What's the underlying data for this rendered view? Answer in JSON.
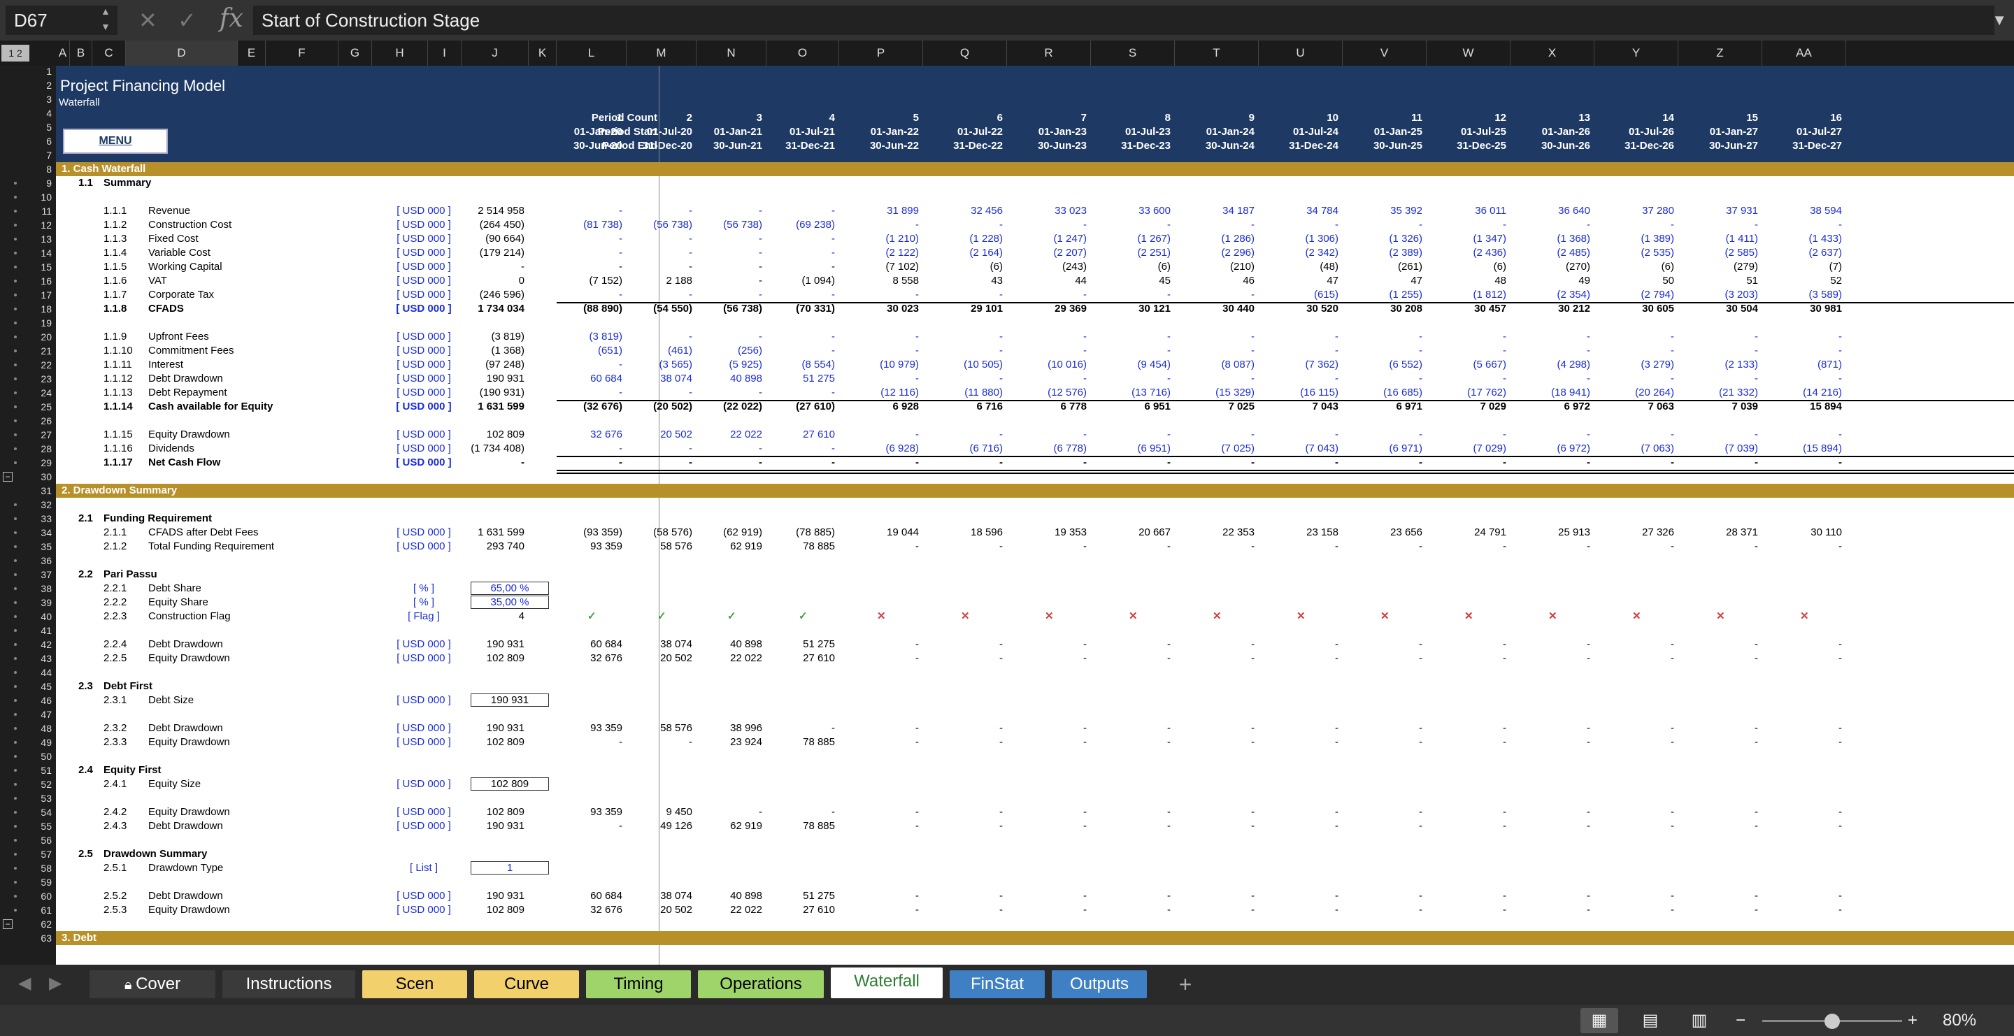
{
  "formula_bar": {
    "name_box": "D67",
    "fx": "fx",
    "content": "Start of Construction Stage"
  },
  "group_levels": "1 2",
  "columns": [
    "A",
    "B",
    "C",
    "D",
    "E",
    "F",
    "G",
    "H",
    "I",
    "J",
    "K",
    "L",
    "M",
    "N",
    "O",
    "P",
    "Q",
    "R",
    "S",
    "T",
    "U",
    "V",
    "W",
    "X",
    "Y",
    "Z",
    "AA"
  ],
  "header": {
    "title": "Project Financing Model",
    "subtitle": "Waterfall",
    "menu_label": "MENU",
    "period_count_label": "Period Count",
    "period_start_label": "Period Start",
    "period_end_label": "Period End",
    "period_count": [
      "1",
      "2",
      "3",
      "4",
      "5",
      "6",
      "7",
      "8",
      "9",
      "10",
      "11",
      "12",
      "13",
      "14",
      "15",
      "16"
    ],
    "period_start": [
      "01-Jan-20",
      "01-Jul-20",
      "01-Jan-21",
      "01-Jul-21",
      "01-Jan-22",
      "01-Jul-22",
      "01-Jan-23",
      "01-Jul-23",
      "01-Jan-24",
      "01-Jul-24",
      "01-Jan-25",
      "01-Jul-25",
      "01-Jan-26",
      "01-Jul-26",
      "01-Jan-27",
      "01-Jul-27"
    ],
    "period_end": [
      "30-Jun-20",
      "31-Dec-20",
      "30-Jun-21",
      "31-Dec-21",
      "30-Jun-22",
      "31-Dec-22",
      "30-Jun-23",
      "31-Dec-23",
      "30-Jun-24",
      "31-Dec-24",
      "30-Jun-25",
      "31-Dec-25",
      "30-Jun-26",
      "31-Dec-26",
      "30-Jun-27",
      "31-Dec-27"
    ]
  },
  "sections": [
    "1.  Cash Waterfall",
    "2.  Drawdown Summary",
    "3.  Debt"
  ],
  "rows": [
    {
      "r": 9,
      "sec": "1.1",
      "label": "Summary"
    },
    {
      "r": 11,
      "id": "1.1.1",
      "label": "Revenue",
      "unit": "[ USD 000 ]",
      "total": "2 514 958",
      "vals": [
        "-",
        "-",
        "-",
        "-",
        "31 899",
        "32 456",
        "33 023",
        "33 600",
        "34 187",
        "34 784",
        "35 392",
        "36 011",
        "36 640",
        "37 280",
        "37 931",
        "38 594"
      ],
      "blue": true
    },
    {
      "r": 12,
      "id": "1.1.2",
      "label": "Construction Cost",
      "unit": "[ USD 000 ]",
      "total": "(264 450)",
      "vals": [
        "(81 738)",
        "(56 738)",
        "(56 738)",
        "(69 238)",
        "-",
        "-",
        "-",
        "-",
        "-",
        "-",
        "-",
        "-",
        "-",
        "-",
        "-",
        "-"
      ],
      "blue": true
    },
    {
      "r": 13,
      "id": "1.1.3",
      "label": "Fixed Cost",
      "unit": "[ USD 000 ]",
      "total": "(90 664)",
      "vals": [
        "-",
        "-",
        "-",
        "-",
        "(1 210)",
        "(1 228)",
        "(1 247)",
        "(1 267)",
        "(1 286)",
        "(1 306)",
        "(1 326)",
        "(1 347)",
        "(1 368)",
        "(1 389)",
        "(1 411)",
        "(1 433)"
      ],
      "blue": true
    },
    {
      "r": 14,
      "id": "1.1.4",
      "label": "Variable Cost",
      "unit": "[ USD 000 ]",
      "total": "(179 214)",
      "vals": [
        "-",
        "-",
        "-",
        "-",
        "(2 122)",
        "(2 164)",
        "(2 207)",
        "(2 251)",
        "(2 296)",
        "(2 342)",
        "(2 389)",
        "(2 436)",
        "(2 485)",
        "(2 535)",
        "(2 585)",
        "(2 637)"
      ],
      "blue": true
    },
    {
      "r": 15,
      "id": "1.1.5",
      "label": "Working Capital",
      "unit": "[ USD 000 ]",
      "total": "-",
      "vals": [
        "-",
        "-",
        "-",
        "-",
        "(7 102)",
        "(6)",
        "(243)",
        "(6)",
        "(210)",
        "(48)",
        "(261)",
        "(6)",
        "(270)",
        "(6)",
        "(279)",
        "(7)"
      ]
    },
    {
      "r": 16,
      "id": "1.1.6",
      "label": "VAT",
      "unit": "[ USD 000 ]",
      "total": "0",
      "vals": [
        "(7 152)",
        "2 188",
        "-",
        "(1 094)",
        "8 558",
        "43",
        "44",
        "45",
        "46",
        "47",
        "47",
        "48",
        "49",
        "50",
        "51",
        "52"
      ]
    },
    {
      "r": 17,
      "id": "1.1.7",
      "label": "Corporate Tax",
      "unit": "[ USD 000 ]",
      "total": "(246 596)",
      "vals": [
        "-",
        "-",
        "-",
        "-",
        "-",
        "-",
        "-",
        "-",
        "-",
        "(615)",
        "(1 255)",
        "(1 812)",
        "(2 354)",
        "(2 794)",
        "(3 203)",
        "(3 589)"
      ],
      "blue": true
    },
    {
      "r": 18,
      "id": "1.1.8",
      "label": "CFADS",
      "unit": "[ USD 000 ]",
      "total": "1 734 034",
      "vals": [
        "(88 890)",
        "(54 550)",
        "(56 738)",
        "(70 331)",
        "30 023",
        "29 101",
        "29 369",
        "30 121",
        "30 440",
        "30 520",
        "30 208",
        "30 457",
        "30 212",
        "30 605",
        "30 504",
        "30 981"
      ],
      "bold": true
    },
    {
      "r": 20,
      "id": "1.1.9",
      "label": "Upfront Fees",
      "unit": "[ USD 000 ]",
      "total": "(3 819)",
      "vals": [
        "(3 819)",
        "-",
        "-",
        "-",
        "-",
        "-",
        "-",
        "-",
        "-",
        "-",
        "-",
        "-",
        "-",
        "-",
        "-",
        "-"
      ],
      "blue": true
    },
    {
      "r": 21,
      "id": "1.1.10",
      "label": "Commitment Fees",
      "unit": "[ USD 000 ]",
      "total": "(1 368)",
      "vals": [
        "(651)",
        "(461)",
        "(256)",
        "-",
        "-",
        "-",
        "-",
        "-",
        "-",
        "-",
        "-",
        "-",
        "-",
        "-",
        "-",
        "-"
      ],
      "blue": true
    },
    {
      "r": 22,
      "id": "1.1.11",
      "label": "Interest",
      "unit": "[ USD 000 ]",
      "total": "(97 248)",
      "vals": [
        "-",
        "(3 565)",
        "(5 925)",
        "(8 554)",
        "(10 979)",
        "(10 505)",
        "(10 016)",
        "(9 454)",
        "(8 087)",
        "(7 362)",
        "(6 552)",
        "(5 667)",
        "(4 298)",
        "(3 279)",
        "(2 133)",
        "(871)"
      ],
      "blue": true
    },
    {
      "r": 23,
      "id": "1.1.12",
      "label": "Debt Drawdown",
      "unit": "[ USD 000 ]",
      "total": "190 931",
      "vals": [
        "60 684",
        "38 074",
        "40 898",
        "51 275",
        "-",
        "-",
        "-",
        "-",
        "-",
        "-",
        "-",
        "-",
        "-",
        "-",
        "-",
        "-"
      ],
      "blue": true
    },
    {
      "r": 24,
      "id": "1.1.13",
      "label": "Debt Repayment",
      "unit": "[ USD 000 ]",
      "total": "(190 931)",
      "vals": [
        "-",
        "-",
        "-",
        "-",
        "(12 116)",
        "(11 880)",
        "(12 576)",
        "(13 716)",
        "(15 329)",
        "(16 115)",
        "(16 685)",
        "(17 762)",
        "(18 941)",
        "(20 264)",
        "(21 332)",
        "(14 216)"
      ],
      "blue": true
    },
    {
      "r": 25,
      "id": "1.1.14",
      "label": "Cash available for Equity",
      "unit": "[ USD 000 ]",
      "total": "1 631 599",
      "vals": [
        "(32 676)",
        "(20 502)",
        "(22 022)",
        "(27 610)",
        "6 928",
        "6 716",
        "6 778",
        "6 951",
        "7 025",
        "7 043",
        "6 971",
        "7 029",
        "6 972",
        "7 063",
        "7 039",
        "15 894"
      ],
      "bold": true
    },
    {
      "r": 27,
      "id": "1.1.15",
      "label": "Equity Drawdown",
      "unit": "[ USD 000 ]",
      "total": "102 809",
      "vals": [
        "32 676",
        "20 502",
        "22 022",
        "27 610",
        "-",
        "-",
        "-",
        "-",
        "-",
        "-",
        "-",
        "-",
        "-",
        "-",
        "-",
        "-"
      ],
      "blue": true
    },
    {
      "r": 28,
      "id": "1.1.16",
      "label": "Dividends",
      "unit": "[ USD 000 ]",
      "total": "(1 734 408)",
      "vals": [
        "-",
        "-",
        "-",
        "-",
        "(6 928)",
        "(6 716)",
        "(6 778)",
        "(6 951)",
        "(7 025)",
        "(7 043)",
        "(6 971)",
        "(7 029)",
        "(6 972)",
        "(7 063)",
        "(7 039)",
        "(15 894)"
      ],
      "blue": true
    },
    {
      "r": 29,
      "id": "1.1.17",
      "label": "Net Cash Flow",
      "unit": "[ USD 000 ]",
      "total": "-",
      "vals": [
        "-",
        "-",
        "-",
        "-",
        "-",
        "-",
        "-",
        "-",
        "-",
        "-",
        "-",
        "-",
        "-",
        "-",
        "-",
        "-"
      ],
      "bold": true
    },
    {
      "r": 33,
      "sec": "2.1",
      "label": "Funding Requirement"
    },
    {
      "r": 34,
      "id": "2.1.1",
      "label": "CFADS after Debt Fees",
      "unit": "[ USD 000 ]",
      "total": "1 631 599",
      "vals": [
        "(93 359)",
        "(58 576)",
        "(62 919)",
        "(78 885)",
        "19 044",
        "18 596",
        "19 353",
        "20 667",
        "22 353",
        "23 158",
        "23 656",
        "24 791",
        "25 913",
        "27 326",
        "28 371",
        "30 110"
      ]
    },
    {
      "r": 35,
      "id": "2.1.2",
      "label": "Total Funding Requirement",
      "unit": "[ USD 000 ]",
      "total": "293 740",
      "vals": [
        "93 359",
        "58 576",
        "62 919",
        "78 885",
        "-",
        "-",
        "-",
        "-",
        "-",
        "-",
        "-",
        "-",
        "-",
        "-",
        "-",
        "-"
      ]
    },
    {
      "r": 37,
      "sec": "2.2",
      "label": "Pari Passu"
    },
    {
      "r": 38,
      "id": "2.2.1",
      "label": "Debt Share",
      "unit": "[ % ]",
      "box": "65,00 %"
    },
    {
      "r": 39,
      "id": "2.2.2",
      "label": "Equity Share",
      "unit": "[ % ]",
      "box": "35,00 %"
    },
    {
      "r": 40,
      "id": "2.2.3",
      "label": "Construction Flag",
      "unit": "[ Flag ]",
      "total": "4",
      "flags": [
        1,
        1,
        1,
        1,
        0,
        0,
        0,
        0,
        0,
        0,
        0,
        0,
        0,
        0,
        0,
        0
      ]
    },
    {
      "r": 42,
      "id": "2.2.4",
      "label": "Debt Drawdown",
      "unit": "[ USD 000 ]",
      "total": "190 931",
      "vals": [
        "60 684",
        "38 074",
        "40 898",
        "51 275",
        "-",
        "-",
        "-",
        "-",
        "-",
        "-",
        "-",
        "-",
        "-",
        "-",
        "-",
        "-"
      ]
    },
    {
      "r": 43,
      "id": "2.2.5",
      "label": "Equity Drawdown",
      "unit": "[ USD 000 ]",
      "total": "102 809",
      "vals": [
        "32 676",
        "20 502",
        "22 022",
        "27 610",
        "-",
        "-",
        "-",
        "-",
        "-",
        "-",
        "-",
        "-",
        "-",
        "-",
        "-",
        "-"
      ]
    },
    {
      "r": 45,
      "sec": "2.3",
      "label": "Debt First"
    },
    {
      "r": 46,
      "id": "2.3.1",
      "label": "Debt Size",
      "unit": "[ USD 000 ]",
      "box": "190 931",
      "boxblack": true
    },
    {
      "r": 48,
      "id": "2.3.2",
      "label": "Debt Drawdown",
      "unit": "[ USD 000 ]",
      "total": "190 931",
      "vals": [
        "93 359",
        "58 576",
        "38 996",
        "-",
        "-",
        "-",
        "-",
        "-",
        "-",
        "-",
        "-",
        "-",
        "-",
        "-",
        "-",
        "-"
      ]
    },
    {
      "r": 49,
      "id": "2.3.3",
      "label": "Equity Drawdown",
      "unit": "[ USD 000 ]",
      "total": "102 809",
      "vals": [
        "-",
        "-",
        "23 924",
        "78 885",
        "-",
        "-",
        "-",
        "-",
        "-",
        "-",
        "-",
        "-",
        "-",
        "-",
        "-",
        "-"
      ]
    },
    {
      "r": 51,
      "sec": "2.4",
      "label": "Equity First"
    },
    {
      "r": 52,
      "id": "2.4.1",
      "label": "Equity Size",
      "unit": "[ USD 000 ]",
      "box": "102 809",
      "boxblack": true
    },
    {
      "r": 54,
      "id": "2.4.2",
      "label": "Equity Drawdown",
      "unit": "[ USD 000 ]",
      "total": "102 809",
      "vals": [
        "93 359",
        "9 450",
        "-",
        "-",
        "-",
        "-",
        "-",
        "-",
        "-",
        "-",
        "-",
        "-",
        "-",
        "-",
        "-",
        "-"
      ]
    },
    {
      "r": 55,
      "id": "2.4.3",
      "label": "Debt Drawdown",
      "unit": "[ USD 000 ]",
      "total": "190 931",
      "vals": [
        "-",
        "49 126",
        "62 919",
        "78 885",
        "-",
        "-",
        "-",
        "-",
        "-",
        "-",
        "-",
        "-",
        "-",
        "-",
        "-",
        "-"
      ]
    },
    {
      "r": 57,
      "sec": "2.5",
      "label": "Drawdown Summary"
    },
    {
      "r": 58,
      "id": "2.5.1",
      "label": "Drawdown Type",
      "unit": "[ List ]",
      "box": "1"
    },
    {
      "r": 60,
      "id": "2.5.2",
      "label": "Debt Drawdown",
      "unit": "[ USD 000 ]",
      "total": "190 931",
      "vals": [
        "60 684",
        "38 074",
        "40 898",
        "51 275",
        "-",
        "-",
        "-",
        "-",
        "-",
        "-",
        "-",
        "-",
        "-",
        "-",
        "-",
        "-"
      ]
    },
    {
      "r": 61,
      "id": "2.5.3",
      "label": "Equity Drawdown",
      "unit": "[ USD 000 ]",
      "total": "102 809",
      "vals": [
        "32 676",
        "20 502",
        "22 022",
        "27 610",
        "-",
        "-",
        "-",
        "-",
        "-",
        "-",
        "-",
        "-",
        "-",
        "-",
        "-",
        "-"
      ]
    }
  ],
  "tabs": [
    {
      "label": "Cover",
      "bg": "#3a3a3a",
      "fg": "#ffffff",
      "lock": true
    },
    {
      "label": "Instructions",
      "bg": "#3a3a3a",
      "fg": "#ffffff"
    },
    {
      "label": "Scen",
      "bg": "#f2d06b",
      "fg": "#000000"
    },
    {
      "label": "Curve",
      "bg": "#f2d06b",
      "fg": "#000000"
    },
    {
      "label": "Timing",
      "bg": "#9fd46a",
      "fg": "#000000"
    },
    {
      "label": "Operations",
      "bg": "#9fd46a",
      "fg": "#000000"
    },
    {
      "label": "Waterfall",
      "bg": "#ffffff",
      "fg": "#2e7d32",
      "active": true
    },
    {
      "label": "FinStat",
      "bg": "#3f7fc4",
      "fg": "#ffffff"
    },
    {
      "label": "Outputs",
      "bg": "#3f7fc4",
      "fg": "#ffffff"
    }
  ],
  "add_tab": "+",
  "zoom": {
    "minus": "−",
    "plus": "+",
    "value": "80%",
    "level_pct": 50
  }
}
